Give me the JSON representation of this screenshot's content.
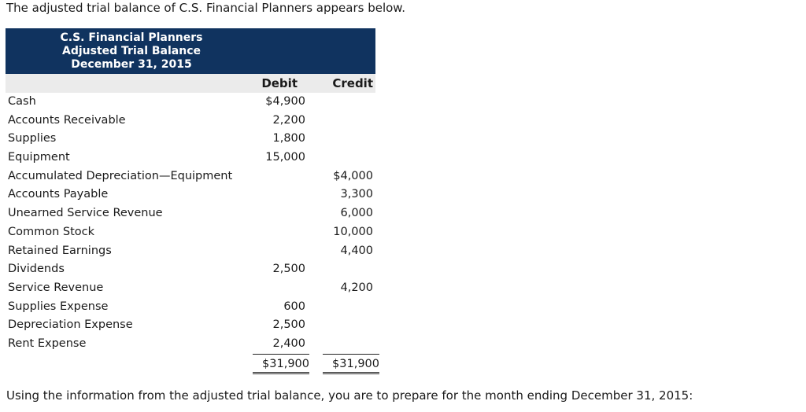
{
  "intro_text": "The adjusted trial balance of C.S. Financial Planners appears below.",
  "table": {
    "company": "C.S. Financial Planners",
    "statement": "Adjusted Trial Balance",
    "date": "December 31, 2015",
    "header_bg": "#10335f",
    "columns": {
      "debit": "Debit",
      "credit": "Credit"
    },
    "rows": [
      {
        "account": "Cash",
        "debit": "$4,900",
        "credit": ""
      },
      {
        "account": "Accounts Receivable",
        "debit": "2,200",
        "credit": ""
      },
      {
        "account": "Supplies",
        "debit": "1,800",
        "credit": ""
      },
      {
        "account": "Equipment",
        "debit": "15,000",
        "credit": ""
      },
      {
        "account": "Accumulated Depreciation—Equipment",
        "debit": "",
        "credit": "$4,000"
      },
      {
        "account": "Accounts Payable",
        "debit": "",
        "credit": "3,300"
      },
      {
        "account": "Unearned Service Revenue",
        "debit": "",
        "credit": "6,000"
      },
      {
        "account": "Common Stock",
        "debit": "",
        "credit": "10,000"
      },
      {
        "account": "Retained Earnings",
        "debit": "",
        "credit": "4,400"
      },
      {
        "account": "Dividends",
        "debit": "2,500",
        "credit": ""
      },
      {
        "account": "Service Revenue",
        "debit": "",
        "credit": "4,200"
      },
      {
        "account": "Supplies Expense",
        "debit": "600",
        "credit": ""
      },
      {
        "account": "Depreciation Expense",
        "debit": "2,500",
        "credit": ""
      },
      {
        "account": "Rent Expense",
        "debit": "2,400",
        "credit": ""
      }
    ],
    "totals": {
      "debit": "$31,900",
      "credit": "$31,900"
    }
  },
  "outro_text": "Using the information from the adjusted trial balance, you are to prepare for the month ending December 31, 2015:"
}
